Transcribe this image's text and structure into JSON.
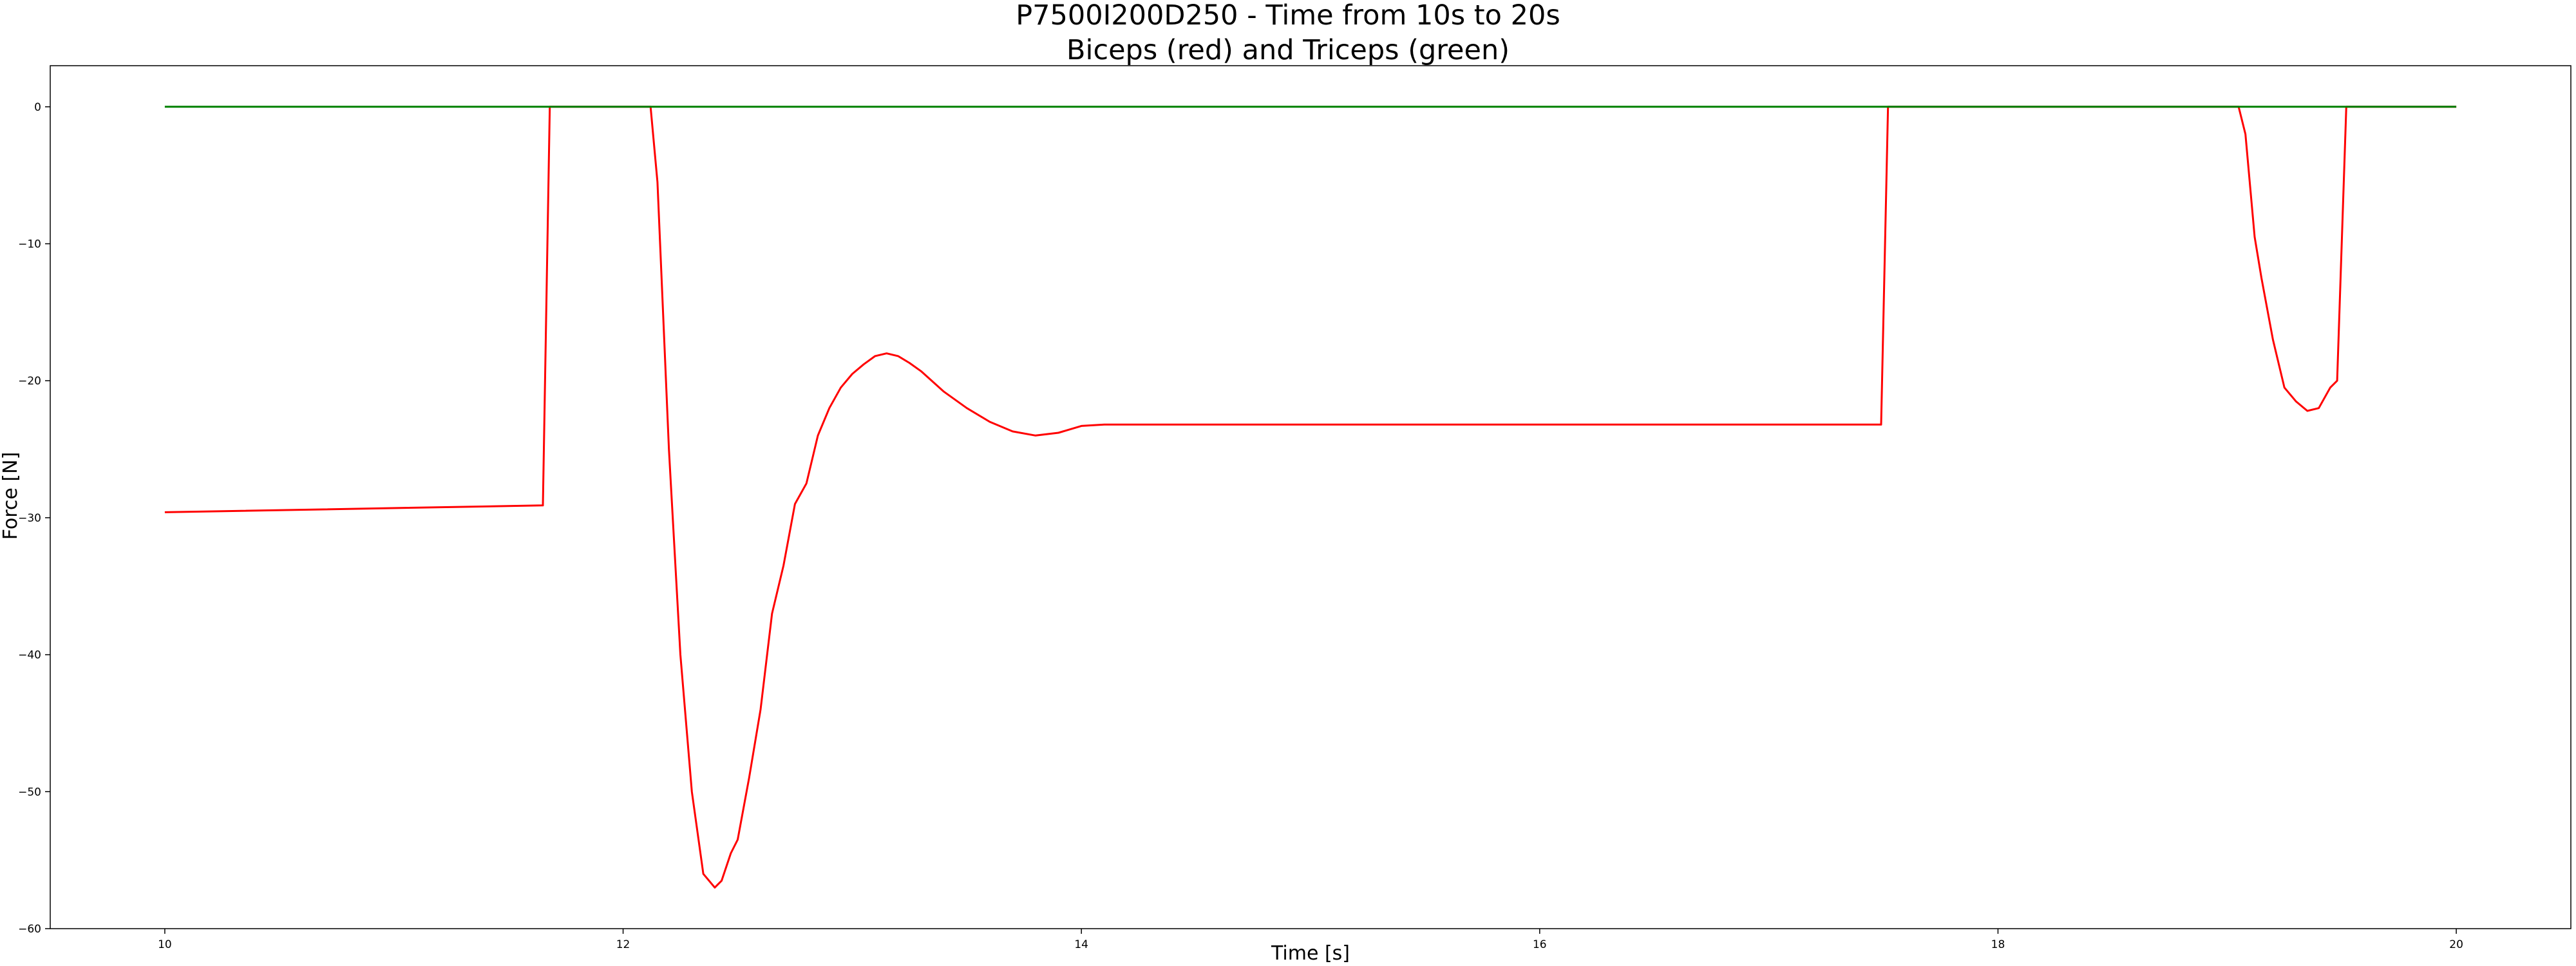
{
  "chart_data": {
    "type": "line",
    "title": "P7500I200D250 - Time from 10s to 20s",
    "subtitle": "Biceps (red) and Triceps (green)",
    "xlabel": "Time [s]",
    "ylabel": "Force [N]",
    "xlim": [
      9.5,
      20.5
    ],
    "ylim": [
      -60,
      3
    ],
    "xticks": [
      10,
      12,
      14,
      16,
      18,
      20
    ],
    "yticks": [
      0,
      -10,
      -20,
      -30,
      -40,
      -50,
      -60
    ],
    "xtick_labels": [
      "10",
      "12",
      "14",
      "16",
      "18",
      "20"
    ],
    "ytick_labels": [
      "0",
      "−10",
      "−20",
      "−30",
      "−40",
      "−50",
      "−60"
    ],
    "grid": false,
    "legend": "none",
    "series": [
      {
        "color": "#ff0000",
        "x": [
          10.0,
          11.65,
          11.68,
          12.12,
          12.15,
          12.2,
          12.25,
          12.3,
          12.35,
          12.4,
          12.43,
          12.47,
          12.5,
          12.55,
          12.6,
          12.65,
          12.7,
          12.75,
          12.8,
          12.85,
          12.9,
          12.95,
          13.0,
          13.05,
          13.1,
          13.15,
          13.2,
          13.25,
          13.3,
          13.4,
          13.5,
          13.6,
          13.7,
          13.8,
          13.9,
          14.0,
          14.1,
          14.5,
          15.5,
          16.5,
          17.49,
          17.52,
          19.05,
          19.08,
          19.12,
          19.15,
          19.2,
          19.25,
          19.3,
          19.35,
          19.4,
          19.45,
          19.48,
          19.52,
          20.0
        ],
        "y": [
          -29.6,
          -29.1,
          0,
          0,
          -5.5,
          -25,
          -40,
          -50,
          -56,
          -57,
          -56.5,
          -54.5,
          -53.5,
          -49,
          -44,
          -37,
          -33.5,
          -29,
          -27.5,
          -24,
          -22,
          -20.5,
          -19.5,
          -18.8,
          -18.2,
          -18.0,
          -18.2,
          -18.7,
          -19.3,
          -20.8,
          -22.0,
          -23.0,
          -23.7,
          -24.0,
          -23.8,
          -23.3,
          -23.2,
          -23.2,
          -23.2,
          -23.2,
          -23.2,
          0,
          0,
          -2,
          -9.5,
          -12.5,
          -17,
          -20.5,
          -21.5,
          -22.2,
          -22.0,
          -20.5,
          -20.0,
          0,
          0
        ]
      },
      {
        "color": "#008000",
        "x": [
          10.0,
          20.0
        ],
        "y": [
          0,
          0
        ]
      }
    ]
  }
}
